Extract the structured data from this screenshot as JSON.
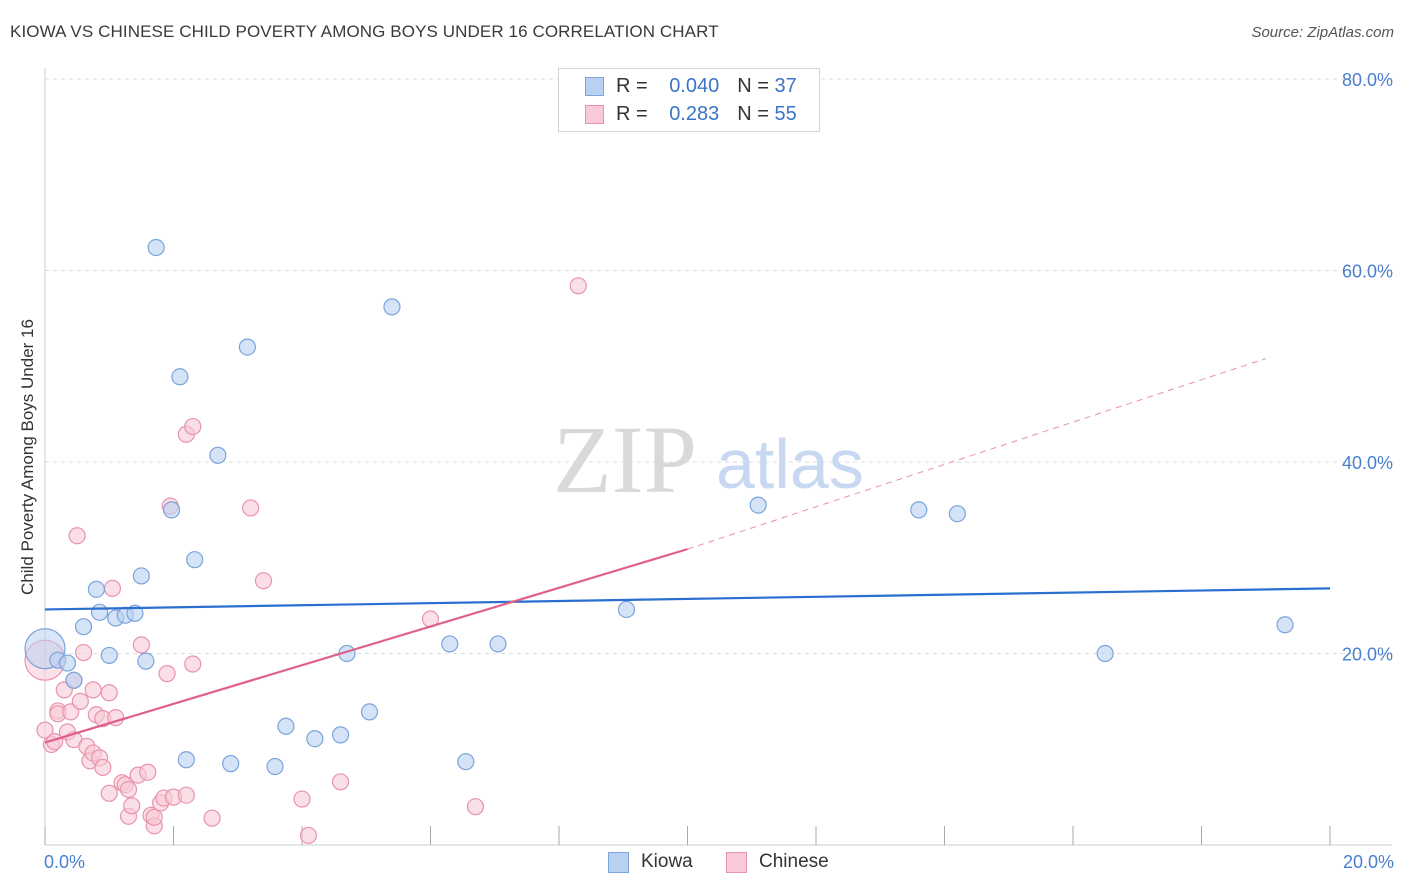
{
  "title": "KIOWA VS CHINESE CHILD POVERTY AMONG BOYS UNDER 16 CORRELATION CHART",
  "source": "Source: ZipAtlas.com",
  "watermark": {
    "zip": "ZIP",
    "atlas": "atlas"
  },
  "colors": {
    "kiowa_fill": "#b9d1f1",
    "kiowa_stroke": "#7ba3dc",
    "kiowa_line": "#2a6fd0",
    "chinese_fill": "#f8c9d6",
    "chinese_stroke": "#e893ae",
    "chinese_line": "#e0608c",
    "grid": "#dddddd",
    "tick_label": "#4a7fd0"
  },
  "legend": {
    "rows": [
      {
        "r_label": "R =",
        "r_value": "0.040",
        "n_label": "N =",
        "n_value": "37"
      },
      {
        "r_label": "R =",
        "r_value": "0.283",
        "n_label": "N =",
        "n_value": "55"
      }
    ]
  },
  "bottom_legend": {
    "kiowa": "Kiowa",
    "chinese": "Chinese"
  },
  "chart_data": {
    "type": "scatter",
    "title": "KIOWA VS CHINESE CHILD POVERTY AMONG BOYS UNDER 16 CORRELATION CHART",
    "xlabel": "",
    "ylabel": "Child Poverty Among Boys Under 16",
    "xlim": [
      0,
      20
    ],
    "ylim": [
      0,
      80
    ],
    "x_tick_labels": [
      "0.0%",
      "20.0%"
    ],
    "y_ticks": [
      20,
      40,
      60,
      80
    ],
    "y_tick_labels": [
      "20.0%",
      "40.0%",
      "60.0%",
      "80.0%"
    ],
    "series": [
      {
        "name": "Kiowa",
        "points": [
          [
            0.0,
            20.5
          ],
          [
            0.2,
            19.3
          ],
          [
            0.35,
            19.0
          ],
          [
            0.45,
            17.2
          ],
          [
            0.6,
            22.8
          ],
          [
            0.8,
            26.7
          ],
          [
            0.85,
            24.3
          ],
          [
            1.0,
            19.8
          ],
          [
            1.1,
            23.7
          ],
          [
            1.25,
            24.0
          ],
          [
            1.4,
            24.2
          ],
          [
            1.5,
            28.1
          ],
          [
            1.57,
            19.2
          ],
          [
            1.73,
            62.4
          ],
          [
            1.97,
            35.0
          ],
          [
            2.1,
            48.9
          ],
          [
            2.2,
            8.9
          ],
          [
            2.33,
            29.8
          ],
          [
            2.69,
            40.7
          ],
          [
            2.89,
            8.5
          ],
          [
            3.15,
            52.0
          ],
          [
            3.58,
            8.2
          ],
          [
            3.75,
            12.4
          ],
          [
            4.2,
            11.1
          ],
          [
            4.6,
            11.5
          ],
          [
            4.7,
            20.0
          ],
          [
            5.05,
            13.9
          ],
          [
            5.4,
            56.2
          ],
          [
            6.3,
            21.0
          ],
          [
            6.55,
            8.7
          ],
          [
            7.05,
            21.0
          ],
          [
            9.05,
            24.6
          ],
          [
            11.1,
            35.5
          ],
          [
            13.6,
            35.0
          ],
          [
            14.2,
            34.6
          ],
          [
            16.5,
            20.0
          ],
          [
            19.3,
            23.0
          ]
        ],
        "trend": {
          "x": [
            0,
            20
          ],
          "y": [
            24.6,
            26.8
          ]
        }
      },
      {
        "name": "Chinese",
        "points": [
          [
            0.0,
            19.3
          ],
          [
            0.0,
            12.0
          ],
          [
            0.1,
            10.5
          ],
          [
            0.15,
            10.8
          ],
          [
            0.2,
            14.0
          ],
          [
            0.2,
            13.7
          ],
          [
            0.3,
            16.2
          ],
          [
            0.35,
            11.8
          ],
          [
            0.4,
            13.9
          ],
          [
            0.45,
            11.0
          ],
          [
            0.45,
            17.2
          ],
          [
            0.5,
            32.3
          ],
          [
            0.55,
            15.0
          ],
          [
            0.6,
            20.1
          ],
          [
            0.65,
            10.3
          ],
          [
            0.7,
            8.8
          ],
          [
            0.75,
            9.6
          ],
          [
            0.75,
            16.2
          ],
          [
            0.8,
            13.6
          ],
          [
            0.85,
            9.1
          ],
          [
            0.9,
            13.2
          ],
          [
            0.9,
            8.1
          ],
          [
            1.0,
            5.4
          ],
          [
            1.0,
            15.9
          ],
          [
            1.05,
            26.8
          ],
          [
            1.1,
            13.3
          ],
          [
            1.2,
            6.5
          ],
          [
            1.25,
            6.3
          ],
          [
            1.3,
            3.0
          ],
          [
            1.3,
            5.8
          ],
          [
            1.35,
            4.1
          ],
          [
            1.45,
            7.3
          ],
          [
            1.5,
            20.9
          ],
          [
            1.6,
            7.6
          ],
          [
            1.65,
            3.1
          ],
          [
            1.7,
            2.0
          ],
          [
            1.7,
            2.9
          ],
          [
            1.8,
            4.4
          ],
          [
            1.85,
            4.9
          ],
          [
            1.9,
            17.9
          ],
          [
            1.95,
            35.4
          ],
          [
            2.0,
            5.0
          ],
          [
            2.2,
            5.2
          ],
          [
            2.2,
            42.9
          ],
          [
            2.3,
            43.7
          ],
          [
            2.3,
            18.9
          ],
          [
            2.6,
            2.8
          ],
          [
            3.2,
            35.2
          ],
          [
            3.4,
            27.6
          ],
          [
            4.0,
            4.8
          ],
          [
            4.1,
            1.0
          ],
          [
            4.6,
            6.6
          ],
          [
            6.0,
            23.6
          ],
          [
            6.7,
            4.0
          ],
          [
            8.3,
            58.4
          ]
        ],
        "trend": {
          "x": [
            0,
            10
          ],
          "y": [
            10.7,
            30.9
          ]
        },
        "trend_extension": {
          "x": [
            10,
            19
          ],
          "y": [
            30.9,
            50.8
          ]
        }
      }
    ]
  }
}
